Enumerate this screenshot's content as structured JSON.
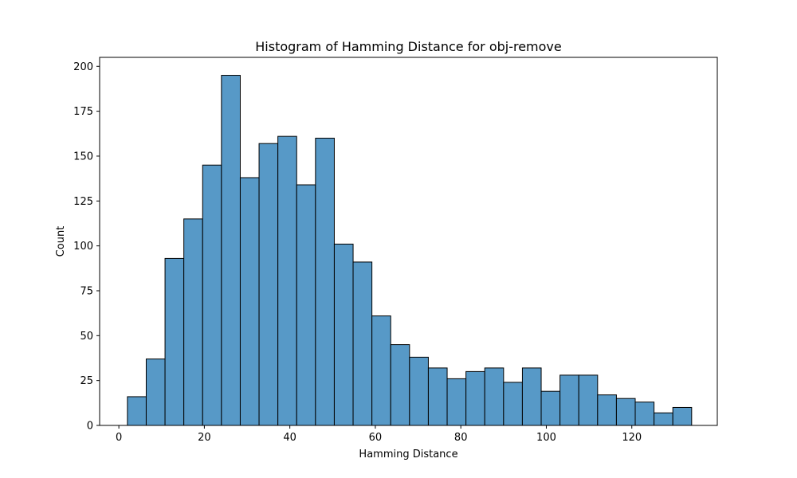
{
  "chart_data": {
    "type": "bar",
    "title": "Histogram of Hamming Distance for obj-remove",
    "xlabel": "Hamming Distance",
    "ylabel": "Count",
    "xlim": [
      -4.5,
      140
    ],
    "ylim": [
      0,
      205
    ],
    "xticks": [
      0,
      20,
      40,
      60,
      80,
      100,
      120
    ],
    "yticks": [
      0,
      25,
      50,
      75,
      100,
      125,
      150,
      175,
      200
    ],
    "bin_edges": [
      2.0,
      6.4,
      10.8,
      15.2,
      19.6,
      24.0,
      28.4,
      32.8,
      37.2,
      41.6,
      46.0,
      50.4,
      54.8,
      59.2,
      63.6,
      68.0,
      72.4,
      76.8,
      81.2,
      85.6,
      90.0,
      94.4,
      98.8,
      103.2,
      107.6,
      112.0,
      116.4,
      120.8,
      125.2,
      129.6,
      134.0
    ],
    "values": [
      16,
      37,
      93,
      115,
      145,
      195,
      138,
      157,
      161,
      134,
      160,
      101,
      91,
      61,
      45,
      38,
      32,
      26,
      30,
      32,
      24,
      32,
      19,
      28,
      28,
      17,
      15,
      13,
      7,
      10
    ],
    "bar_color": "#5799c7",
    "edge_color": "#000000",
    "grid": false,
    "legend": "none"
  }
}
